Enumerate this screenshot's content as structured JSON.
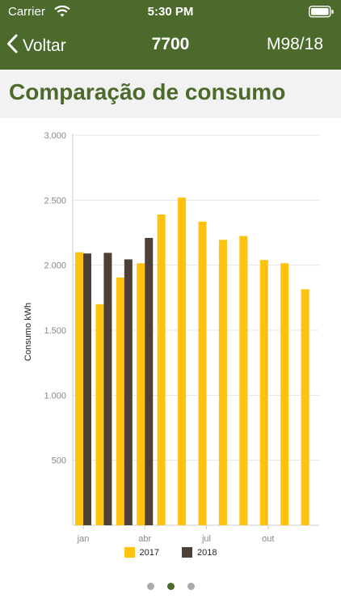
{
  "status": {
    "carrier": "Carrier",
    "time": "5:30 PM"
  },
  "nav": {
    "back_label": "Voltar",
    "title": "7700",
    "right_label": "M98/18"
  },
  "page": {
    "title": "Comparação de consumo"
  },
  "colors": {
    "topbar": "#4b6a2b",
    "accent": "#4b6a2b",
    "series_2017": "#ffc20e",
    "series_2018": "#4d4036"
  },
  "pager": {
    "count": 3,
    "active_index": 1
  },
  "chart_data": {
    "type": "bar",
    "ylabel": "Consumo kWh",
    "ylim": [
      0,
      3000
    ],
    "y_ticks": [
      500,
      1000,
      1500,
      2000,
      2500,
      3000
    ],
    "y_tick_labels": [
      "500",
      "1.000",
      "1.500",
      "2.000",
      "2.500",
      "3.000"
    ],
    "x_tick_labels": [
      {
        "label": "jan",
        "month_index": 0
      },
      {
        "label": "abr",
        "month_index": 3
      },
      {
        "label": "jul",
        "month_index": 6
      },
      {
        "label": "out",
        "month_index": 9
      }
    ],
    "legend_position": "bottom",
    "grid": true,
    "series": [
      {
        "name": "2017",
        "color": "#ffc20e",
        "values": [
          2100,
          1700,
          1905,
          2015,
          2390,
          2520,
          2335,
          2195,
          2225,
          2040,
          2015,
          1815
        ]
      },
      {
        "name": "2018",
        "color": "#4d4036",
        "values": [
          2090,
          2095,
          2045,
          2210
        ]
      }
    ]
  }
}
